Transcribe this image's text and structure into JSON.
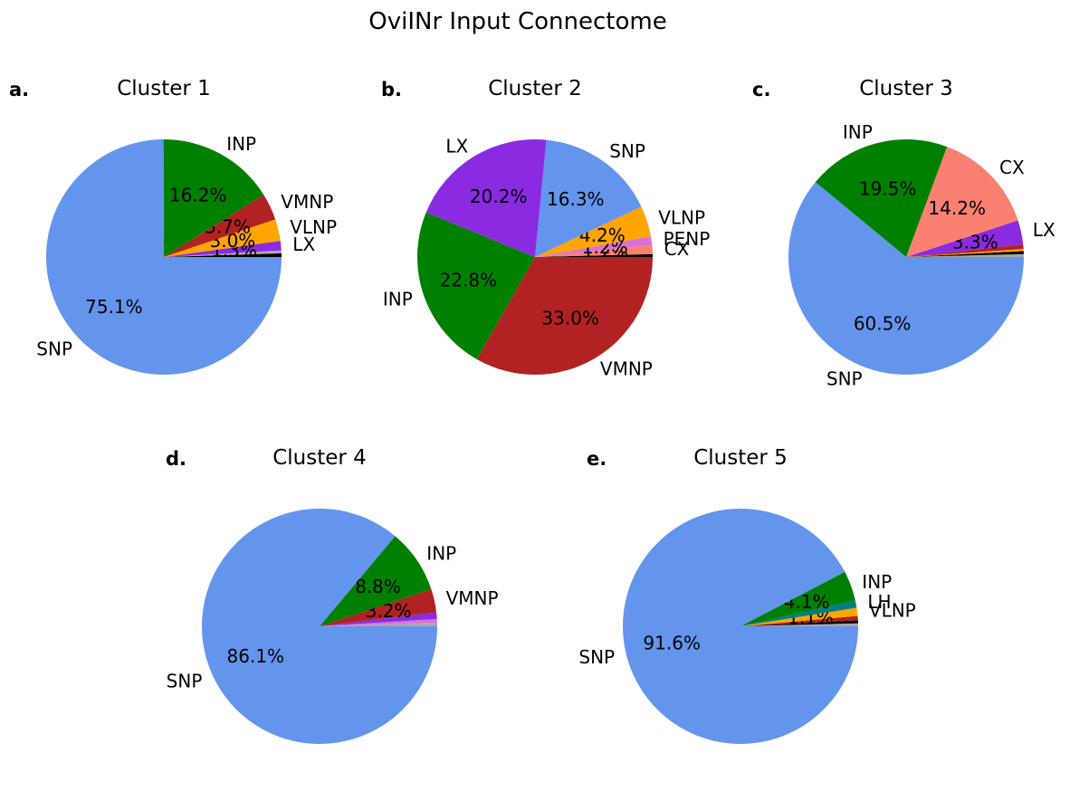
{
  "figure_title": "OviINr Input Connectome",
  "colors": {
    "SNP": "#6495ED",
    "INP": "#008000",
    "VMNP": "#B22222",
    "VLNP": "#FFA500",
    "LX": "#8A2BE2",
    "CX": "#FA8072",
    "PENP": "#DA70D6",
    "LH": "#008080",
    "OTHER_PINK": "#FF69B4",
    "OTHER_BLACK": "#000000",
    "OTHER_GRAY": "#A9A9A9",
    "OTHER_TAN": "#D2B48C",
    "OTHER_LIGHTGRAY": "#C0C0C0",
    "OTHER_BLUE": "#4169E1"
  },
  "chart_data": [
    {
      "type": "pie",
      "panel": "a.",
      "title": "Cluster 1",
      "slices": [
        {
          "key": "OTHER_BLACK",
          "label": "",
          "value": 0.5,
          "pct": ""
        },
        {
          "key": "OTHER_GRAY",
          "label": "",
          "value": 0.4,
          "pct": ""
        },
        {
          "key": "LX",
          "label": "LX",
          "value": 1.3,
          "pct": "1.3%"
        },
        {
          "key": "VLNP",
          "label": "VLNP",
          "value": 3.0,
          "pct": "3.0%"
        },
        {
          "key": "VMNP",
          "label": "VMNP",
          "value": 3.7,
          "pct": "3.7%"
        },
        {
          "key": "INP",
          "label": "INP",
          "value": 16.2,
          "pct": "16.2%"
        },
        {
          "key": "SNP",
          "label": "SNP",
          "value": 75.1,
          "pct": "75.1%"
        }
      ]
    },
    {
      "type": "pie",
      "panel": "b.",
      "title": "Cluster 2",
      "slices": [
        {
          "key": "OTHER_BLACK",
          "label": "",
          "value": 0.4,
          "pct": ""
        },
        {
          "key": "CX",
          "label": "CX",
          "value": 1.2,
          "pct": "1.2%"
        },
        {
          "key": "PENP",
          "label": "PENP",
          "value": 1.2,
          "pct": "1.2%"
        },
        {
          "key": "VLNP",
          "label": "VLNP",
          "value": 4.2,
          "pct": "4.2%"
        },
        {
          "key": "SNP",
          "label": "SNP",
          "value": 16.3,
          "pct": "16.3%"
        },
        {
          "key": "LX",
          "label": "LX",
          "value": 20.2,
          "pct": "20.2%"
        },
        {
          "key": "INP",
          "label": "INP",
          "value": 22.8,
          "pct": "22.8%"
        },
        {
          "key": "VMNP",
          "label": "VMNP",
          "value": 33.0,
          "pct": "33.0%"
        }
      ]
    },
    {
      "type": "pie",
      "panel": "c.",
      "title": "Cluster 3",
      "slices": [
        {
          "key": "OTHER_GRAY",
          "label": "",
          "value": 0.4,
          "pct": ""
        },
        {
          "key": "OTHER_BLACK",
          "label": "",
          "value": 0.4,
          "pct": ""
        },
        {
          "key": "VLNP",
          "label": "",
          "value": 0.3,
          "pct": ""
        },
        {
          "key": "VMNP",
          "label": "",
          "value": 0.6,
          "pct": ""
        },
        {
          "key": "LX",
          "label": "LX",
          "value": 3.3,
          "pct": "3.3%"
        },
        {
          "key": "CX",
          "label": "CX",
          "value": 14.2,
          "pct": "14.2%"
        },
        {
          "key": "INP",
          "label": "INP",
          "value": 19.5,
          "pct": "19.5%"
        },
        {
          "key": "SNP",
          "label": "SNP",
          "value": 60.5,
          "pct": "60.5%"
        }
      ]
    },
    {
      "type": "pie",
      "panel": "d.",
      "title": "Cluster 4",
      "slices": [
        {
          "key": "OTHER_GRAY",
          "label": "",
          "value": 0.5,
          "pct": ""
        },
        {
          "key": "PENP",
          "label": "",
          "value": 0.5,
          "pct": ""
        },
        {
          "key": "LX",
          "label": "",
          "value": 0.9,
          "pct": ""
        },
        {
          "key": "VMNP",
          "label": "VMNP",
          "value": 3.2,
          "pct": "3.2%"
        },
        {
          "key": "INP",
          "label": "INP",
          "value": 8.8,
          "pct": "8.8%"
        },
        {
          "key": "SNP",
          "label": "SNP",
          "value": 86.1,
          "pct": "86.1%"
        }
      ]
    },
    {
      "type": "pie",
      "panel": "e.",
      "title": "Cluster 5",
      "slices": [
        {
          "key": "OTHER_GRAY",
          "label": "",
          "value": 0.4,
          "pct": ""
        },
        {
          "key": "OTHER_BLACK",
          "label": "",
          "value": 0.4,
          "pct": ""
        },
        {
          "key": "VMNP",
          "label": "",
          "value": 0.6,
          "pct": ""
        },
        {
          "key": "VLNP",
          "label": "VLNP",
          "value": 1.1,
          "pct": "1.1%"
        },
        {
          "key": "LH",
          "label": "LH",
          "value": 1.0,
          "pct": ""
        },
        {
          "key": "INP",
          "label": "INP",
          "value": 4.1,
          "pct": "4.1%"
        },
        {
          "key": "SNP",
          "label": "SNP",
          "value": 91.6,
          "pct": "91.6%"
        }
      ]
    }
  ]
}
